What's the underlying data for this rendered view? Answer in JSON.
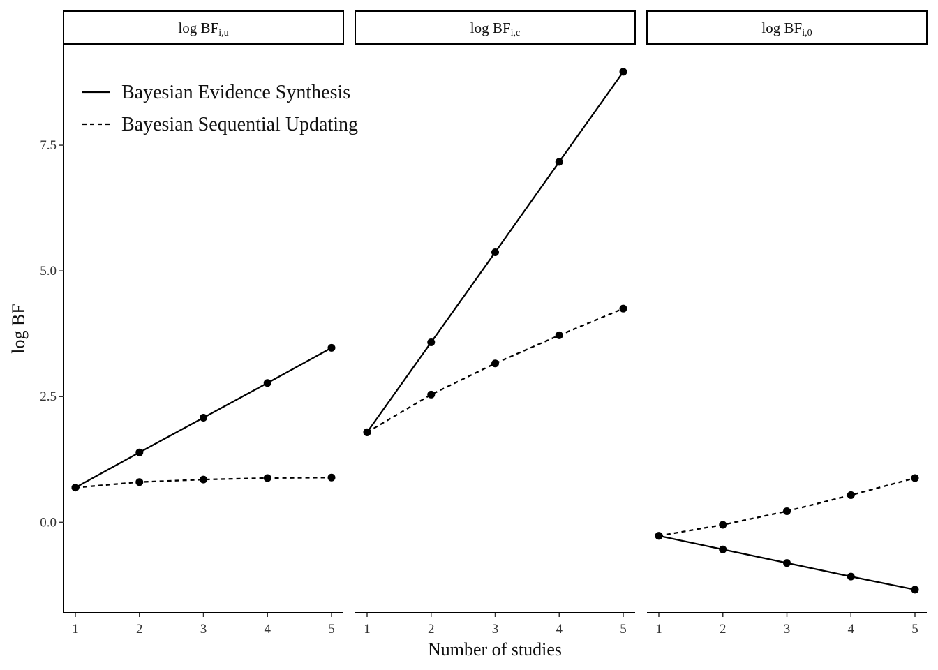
{
  "chart_data": {
    "type": "line",
    "xlabel": "Number of studies",
    "ylabel": "log BF",
    "x": [
      1,
      2,
      3,
      4,
      5
    ],
    "xticks": [
      "1",
      "2",
      "3",
      "4",
      "5"
    ],
    "yticks": [
      {
        "value": 0.0,
        "label": "0.0"
      },
      {
        "value": 2.5,
        "label": "2.5"
      },
      {
        "value": 5.0,
        "label": "5.0"
      },
      {
        "value": 7.5,
        "label": "7.5"
      }
    ],
    "ylim": [
      -1.8,
      9.5
    ],
    "legend": {
      "position": "top-left",
      "entries": [
        {
          "label": "Bayesian Evidence Synthesis",
          "linestyle": "solid"
        },
        {
          "label": "Bayesian Sequential Updating",
          "linestyle": "dashed"
        }
      ]
    },
    "facets": [
      {
        "strip_main": "log BF",
        "strip_sub": "i,u",
        "series": [
          {
            "name": "Bayesian Evidence Synthesis",
            "linestyle": "solid",
            "values": [
              0.69,
              1.39,
              2.08,
              2.77,
              3.47
            ]
          },
          {
            "name": "Bayesian Sequential Updating",
            "linestyle": "dashed",
            "values": [
              0.69,
              0.8,
              0.85,
              0.88,
              0.89
            ]
          }
        ]
      },
      {
        "strip_main": "log BF",
        "strip_sub": "i,c",
        "series": [
          {
            "name": "Bayesian Evidence Synthesis",
            "linestyle": "solid",
            "values": [
              1.79,
              3.58,
              5.37,
              7.17,
              8.96
            ]
          },
          {
            "name": "Bayesian Sequential Updating",
            "linestyle": "dashed",
            "values": [
              1.79,
              2.54,
              3.16,
              3.72,
              4.25
            ]
          }
        ]
      },
      {
        "strip_main": "log BF",
        "strip_sub": "i,0",
        "series": [
          {
            "name": "Bayesian Evidence Synthesis",
            "linestyle": "solid",
            "values": [
              -0.27,
              -0.54,
              -0.81,
              -1.08,
              -1.34
            ]
          },
          {
            "name": "Bayesian Sequential Updating",
            "linestyle": "dashed",
            "values": [
              -0.27,
              -0.05,
              0.22,
              0.54,
              0.88
            ]
          }
        ]
      }
    ],
    "colors": {
      "line": "#000000",
      "point": "#000000",
      "axis": "#000000"
    },
    "grid": false
  }
}
